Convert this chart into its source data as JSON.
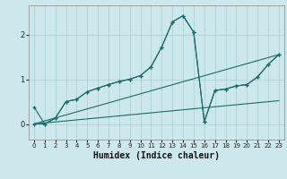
{
  "xlabel": "Humidex (Indice chaleur)",
  "bg_color": "#cde8ec",
  "grid_color": "#aacfd4",
  "line_color": "#1a6b6b",
  "xlim": [
    -0.5,
    23.5
  ],
  "ylim": [
    -0.35,
    2.65
  ],
  "yticks": [
    0,
    1,
    2
  ],
  "xticks": [
    0,
    1,
    2,
    3,
    4,
    5,
    6,
    7,
    8,
    9,
    10,
    11,
    12,
    13,
    14,
    15,
    16,
    17,
    18,
    19,
    20,
    21,
    22,
    23
  ],
  "line1_x": [
    0,
    1,
    2,
    3,
    4,
    5,
    6,
    7,
    8,
    9,
    10,
    11,
    12,
    13,
    14,
    15,
    16,
    17,
    18,
    19,
    20,
    21,
    22,
    23
  ],
  "line1_y": [
    0.0,
    0.0,
    0.13,
    0.5,
    0.55,
    0.72,
    0.8,
    0.88,
    0.95,
    1.0,
    1.08,
    1.28,
    1.72,
    2.28,
    2.42,
    2.05,
    0.05,
    0.75,
    0.78,
    0.85,
    0.88,
    1.05,
    1.33,
    1.55
  ],
  "line2_x": [
    0,
    1,
    2,
    3,
    4,
    5,
    6,
    7,
    8,
    9,
    10,
    11,
    12,
    13,
    14,
    15,
    16,
    17,
    18,
    19,
    20,
    21,
    22,
    23
  ],
  "line2_y": [
    0.38,
    0.0,
    0.13,
    0.5,
    0.55,
    0.72,
    0.8,
    0.88,
    0.95,
    1.0,
    1.08,
    1.28,
    1.72,
    2.28,
    2.42,
    2.05,
    0.05,
    0.75,
    0.78,
    0.85,
    0.88,
    1.05,
    1.33,
    1.55
  ],
  "line3_x": [
    0,
    23
  ],
  "line3_y": [
    0.0,
    1.55
  ],
  "line4_x": [
    0,
    23
  ],
  "line4_y": [
    0.0,
    0.52
  ]
}
